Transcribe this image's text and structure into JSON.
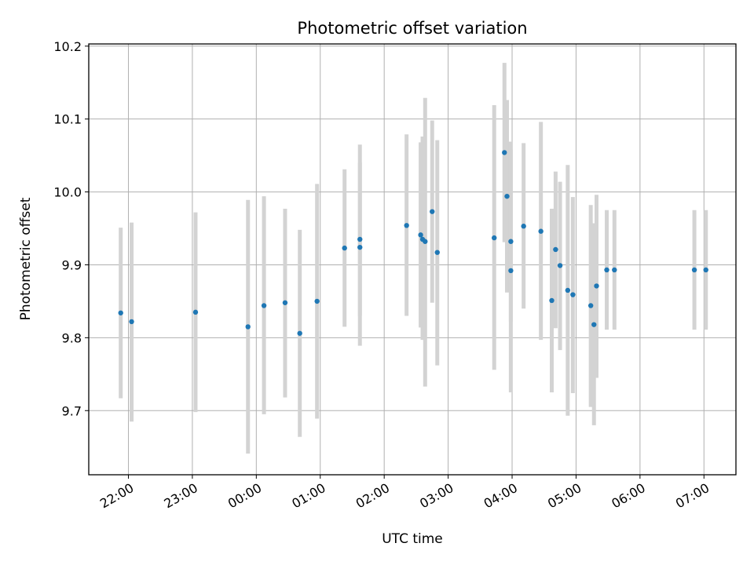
{
  "chart_data": {
    "type": "scatter",
    "title": "Photometric offset variation",
    "xlabel": "UTC time",
    "ylabel": "Photometric offset",
    "x_tick_labels": [
      "22:00",
      "23:00",
      "00:00",
      "01:00",
      "02:00",
      "03:00",
      "04:00",
      "05:00",
      "06:00",
      "07:00"
    ],
    "x_tick_hours": [
      22,
      23,
      24,
      25,
      26,
      27,
      28,
      29,
      30,
      31
    ],
    "xlim_hours": [
      21.38,
      31.5
    ],
    "y_ticks": [
      9.7,
      9.8,
      9.9,
      10.0,
      10.1,
      10.2
    ],
    "y_tick_labels": [
      "9.7",
      "9.8",
      "9.9",
      "10.0",
      "10.1",
      "10.2"
    ],
    "ylim": [
      9.612,
      10.203
    ],
    "grid": true,
    "colors": {
      "points": "#1f77b4",
      "errorbars": "#d3d3d3",
      "grid": "#b0b0b0"
    },
    "points": [
      {
        "t": 21.88,
        "y": 9.834,
        "lo": 9.717,
        "hi": 9.951
      },
      {
        "t": 22.05,
        "y": 9.822,
        "lo": 9.685,
        "hi": 9.958
      },
      {
        "t": 23.05,
        "y": 9.835,
        "lo": 9.698,
        "hi": 9.972
      },
      {
        "t": 23.87,
        "y": 9.815,
        "lo": 9.641,
        "hi": 9.989
      },
      {
        "t": 24.12,
        "y": 9.844,
        "lo": 9.695,
        "hi": 9.994
      },
      {
        "t": 24.45,
        "y": 9.848,
        "lo": 9.718,
        "hi": 9.977
      },
      {
        "t": 24.68,
        "y": 9.806,
        "lo": 9.664,
        "hi": 9.948
      },
      {
        "t": 24.95,
        "y": 9.85,
        "lo": 9.689,
        "hi": 10.011
      },
      {
        "t": 25.38,
        "y": 9.923,
        "lo": 9.815,
        "hi": 10.031
      },
      {
        "t": 25.62,
        "y": 9.924,
        "lo": 9.789,
        "hi": 10.065
      },
      {
        "t": 25.62,
        "y": 9.935,
        "lo": 9.83,
        "hi": 10.04
      },
      {
        "t": 26.35,
        "y": 9.954,
        "lo": 9.83,
        "hi": 10.079
      },
      {
        "t": 26.57,
        "y": 9.941,
        "lo": 9.814,
        "hi": 10.068
      },
      {
        "t": 26.6,
        "y": 9.935,
        "lo": 9.797,
        "hi": 10.076
      },
      {
        "t": 26.64,
        "y": 9.932,
        "lo": 9.733,
        "hi": 10.129
      },
      {
        "t": 26.75,
        "y": 9.973,
        "lo": 9.848,
        "hi": 10.098
      },
      {
        "t": 26.83,
        "y": 9.917,
        "lo": 9.762,
        "hi": 10.071
      },
      {
        "t": 27.72,
        "y": 9.937,
        "lo": 9.756,
        "hi": 10.119
      },
      {
        "t": 27.88,
        "y": 10.054,
        "lo": 9.931,
        "hi": 10.177
      },
      {
        "t": 27.92,
        "y": 9.994,
        "lo": 9.862,
        "hi": 10.126
      },
      {
        "t": 27.98,
        "y": 9.932,
        "lo": 9.822,
        "hi": 10.069
      },
      {
        "t": 27.98,
        "y": 9.892,
        "lo": 9.725,
        "hi": 10.058
      },
      {
        "t": 28.18,
        "y": 9.953,
        "lo": 9.84,
        "hi": 10.067
      },
      {
        "t": 28.45,
        "y": 9.946,
        "lo": 9.797,
        "hi": 10.096
      },
      {
        "t": 28.62,
        "y": 9.851,
        "lo": 9.725,
        "hi": 9.977
      },
      {
        "t": 28.68,
        "y": 9.921,
        "lo": 9.813,
        "hi": 10.028
      },
      {
        "t": 28.75,
        "y": 9.899,
        "lo": 9.783,
        "hi": 10.014
      },
      {
        "t": 28.87,
        "y": 9.865,
        "lo": 9.693,
        "hi": 10.037
      },
      {
        "t": 28.95,
        "y": 9.859,
        "lo": 9.724,
        "hi": 9.993
      },
      {
        "t": 29.23,
        "y": 9.844,
        "lo": 9.705,
        "hi": 9.982
      },
      {
        "t": 29.28,
        "y": 9.818,
        "lo": 9.68,
        "hi": 9.957
      },
      {
        "t": 29.32,
        "y": 9.871,
        "lo": 9.745,
        "hi": 9.996
      },
      {
        "t": 29.48,
        "y": 9.893,
        "lo": 9.811,
        "hi": 9.975
      },
      {
        "t": 29.6,
        "y": 9.893,
        "lo": 9.811,
        "hi": 9.975
      },
      {
        "t": 30.85,
        "y": 9.893,
        "lo": 9.811,
        "hi": 9.975
      },
      {
        "t": 31.03,
        "y": 9.893,
        "lo": 9.811,
        "hi": 9.975
      }
    ]
  }
}
